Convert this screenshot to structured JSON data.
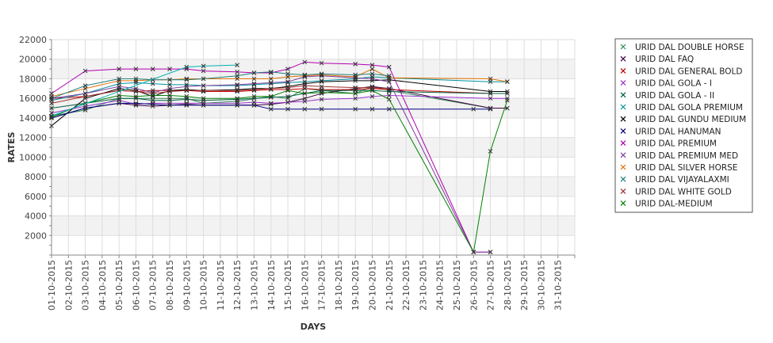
{
  "chart_data": {
    "type": "line",
    "xlabel": "DAYS",
    "ylabel": "RATES",
    "ylim": [
      0,
      22000
    ],
    "yticks": [
      2000,
      4000,
      6000,
      8000,
      10000,
      12000,
      14000,
      16000,
      18000,
      20000,
      22000
    ],
    "x": [
      "01-10-2015",
      "02-10-2015",
      "03-10-2015",
      "04-10-2015",
      "05-10-2015",
      "06-10-2015",
      "07-10-2015",
      "08-10-2015",
      "09-10-2015",
      "10-10-2015",
      "11-10-2015",
      "12-10-2015",
      "13-10-2015",
      "14-10-2015",
      "15-10-2015",
      "16-10-2015",
      "17-10-2015",
      "18-10-2015",
      "19-10-2015",
      "20-10-2015",
      "21-10-2015",
      "22-10-2015",
      "23-10-2015",
      "24-10-2015",
      "25-10-2015",
      "26-10-2015",
      "27-10-2015",
      "28-10-2015",
      "29-10-2015",
      "30-10-2015",
      "31-10-2015"
    ],
    "grid": true,
    "legend_position": "right",
    "series": [
      {
        "name": "URID DAL DOUBLE HORSE",
        "color": "#2e8b57",
        "values": [
          14200,
          null,
          14800,
          null,
          16000,
          16000,
          null,
          16000,
          16000,
          15500,
          null,
          15700,
          null,
          16200,
          16000,
          17000,
          16800,
          null,
          16500,
          17200,
          16800,
          null,
          null,
          null,
          null,
          null,
          15000,
          15000,
          null,
          null,
          null
        ]
      },
      {
        "name": "URID DAL FAQ",
        "color": "#400040",
        "values": [
          14000,
          null,
          15000,
          null,
          15500,
          15300,
          15200,
          15300,
          15400,
          15300,
          null,
          15300,
          15300,
          15400,
          15600,
          16000,
          16500,
          null,
          17000,
          17200,
          17000,
          null,
          null,
          null,
          null,
          null,
          15000,
          15000,
          null,
          null,
          null
        ]
      },
      {
        "name": "URID DAL GENERAL BOLD",
        "color": "#c00000",
        "values": [
          16000,
          null,
          16200,
          null,
          16800,
          16700,
          16800,
          16800,
          16800,
          16700,
          null,
          16700,
          16800,
          16900,
          16900,
          17000,
          16900,
          null,
          16900,
          17000,
          16900,
          null,
          null,
          null,
          null,
          null,
          16500,
          16500,
          null,
          null,
          null
        ]
      },
      {
        "name": "URID DAL GOLA - I",
        "color": "#9932cc",
        "values": [
          14500,
          null,
          15200,
          null,
          15800,
          15400,
          15500,
          15500,
          15500,
          15500,
          null,
          15500,
          15600,
          15500,
          15600,
          15700,
          15900,
          null,
          16000,
          16200,
          16300,
          null,
          null,
          null,
          null,
          null,
          16000,
          16000,
          null,
          null,
          null
        ]
      },
      {
        "name": "URID DAL GOLA - II",
        "color": "#006040",
        "values": [
          15000,
          null,
          15500,
          null,
          16000,
          16000,
          15800,
          15800,
          15900,
          15800,
          null,
          15900,
          16000,
          16100,
          16200,
          16500,
          16800,
          null,
          16800,
          16800,
          16700,
          null,
          null,
          null,
          null,
          null,
          16500,
          16500,
          null,
          null,
          null
        ]
      },
      {
        "name": "URID DAL GOLA PREMIUM",
        "color": "#0090a0",
        "values": [
          15800,
          null,
          16500,
          null,
          17500,
          17600,
          17500,
          17400,
          17400,
          17300,
          null,
          17300,
          17400,
          17500,
          17600,
          17700,
          17800,
          null,
          18000,
          18200,
          18100,
          null,
          null,
          null,
          null,
          null,
          17700,
          17700,
          null,
          null,
          null
        ]
      },
      {
        "name": "URID DAL GUNDU MEDIUM",
        "color": "#000000",
        "values": [
          13200,
          null,
          16000,
          null,
          17000,
          16800,
          16200,
          16800,
          16900,
          16800,
          null,
          16900,
          17000,
          17000,
          17200,
          17500,
          17700,
          null,
          17800,
          17800,
          17900,
          null,
          null,
          null,
          null,
          null,
          16700,
          16700,
          null,
          null,
          null
        ]
      },
      {
        "name": "URID DAL HANUMAN",
        "color": "#000080",
        "values": [
          14000,
          null,
          15000,
          null,
          15500,
          15500,
          15400,
          15300,
          15300,
          15300,
          null,
          15300,
          15300,
          14900,
          14900,
          14900,
          14900,
          null,
          14900,
          14900,
          14900,
          null,
          null,
          null,
          null,
          14900,
          14900,
          null,
          null,
          null,
          null
        ]
      },
      {
        "name": "URID DAL PREMIUM",
        "color": "#b000b0",
        "values": [
          16500,
          null,
          18800,
          null,
          19000,
          19000,
          19000,
          19000,
          19000,
          18800,
          null,
          18700,
          18600,
          18600,
          19000,
          19700,
          19600,
          null,
          19500,
          19400,
          19200,
          null,
          null,
          null,
          null,
          300,
          300,
          null,
          null,
          null,
          null
        ]
      },
      {
        "name": "URID DAL PREMIUM MED",
        "color": "#8040a0",
        "values": [
          16000,
          null,
          16500,
          null,
          17200,
          17000,
          16600,
          17000,
          17200,
          17300,
          null,
          17400,
          17500,
          17600,
          17700,
          18200,
          18300,
          null,
          18100,
          18000,
          17700,
          null,
          null,
          null,
          null,
          300,
          300,
          null,
          null,
          null,
          null
        ]
      },
      {
        "name": "URID DAL SILVER HORSE",
        "color": "#e07000",
        "values": [
          16200,
          null,
          17000,
          null,
          17800,
          17800,
          17900,
          17900,
          18000,
          18000,
          null,
          18000,
          18000,
          18000,
          18200,
          18300,
          18400,
          null,
          18200,
          19000,
          18100,
          null,
          null,
          null,
          null,
          null,
          18000,
          17700,
          null,
          null,
          null
        ]
      },
      {
        "name": "URID DAL VIJAYALAXMI",
        "color": "#208080",
        "values": [
          16000,
          null,
          17300,
          null,
          18000,
          18000,
          17900,
          17900,
          17900,
          18000,
          null,
          18300,
          18600,
          18700,
          18500,
          18400,
          18500,
          null,
          18400,
          18500,
          18300,
          null,
          null,
          null,
          null,
          null,
          null,
          null,
          null,
          null,
          null
        ]
      },
      {
        "name": "URID DAL WHITE GOLD",
        "color": "#a03030",
        "values": [
          15500,
          null,
          16200,
          null,
          16800,
          16700,
          16500,
          16700,
          16800,
          16800,
          null,
          16800,
          16900,
          17000,
          17100,
          17300,
          17200,
          null,
          17100,
          17100,
          17000,
          null,
          null,
          null,
          null,
          null,
          null,
          null,
          null,
          null,
          null
        ]
      },
      {
        "name": "URID DAL-MEDIUM",
        "color": "#008000",
        "values": [
          14100,
          null,
          15500,
          null,
          16300,
          16200,
          16300,
          16300,
          16200,
          16000,
          null,
          16000,
          16200,
          16200,
          16800,
          16500,
          16600,
          null,
          16500,
          16800,
          15900,
          null,
          null,
          null,
          null,
          300,
          10600,
          15800,
          null,
          null,
          null
        ]
      },
      {
        "name": "",
        "color": "#00b0b0",
        "values": [
          14200,
          null,
          null,
          null,
          null,
          null,
          null,
          null,
          19200,
          19300,
          null,
          19400,
          null,
          null,
          null,
          null,
          null,
          null,
          null,
          null,
          null,
          null,
          null,
          null,
          null,
          null,
          null,
          null,
          null,
          null,
          null
        ]
      }
    ]
  }
}
